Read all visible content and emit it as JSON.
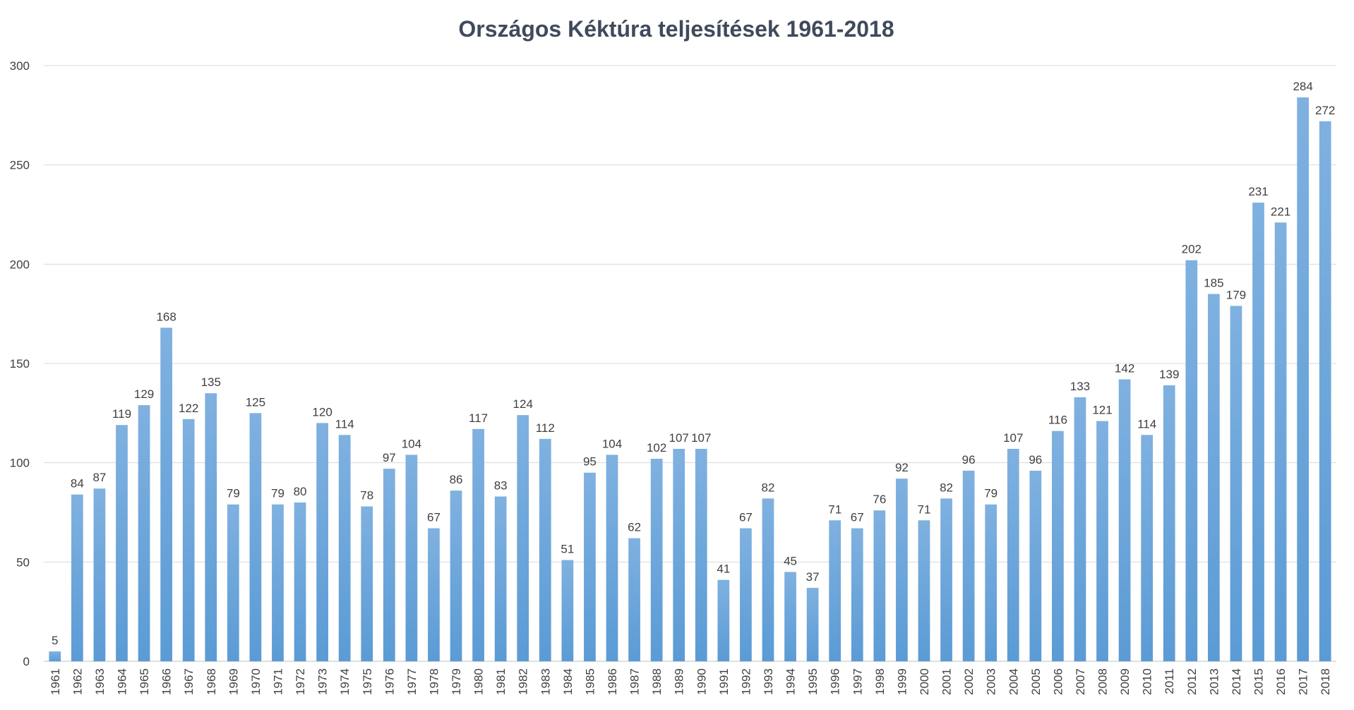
{
  "chart_data": {
    "type": "bar",
    "title": "Országos  Kéktúra teljesítések 1961-2018",
    "xlabel": "",
    "ylabel": "",
    "ylim": [
      0,
      300
    ],
    "yticks": [
      0,
      50,
      100,
      150,
      200,
      250,
      300
    ],
    "grid": true,
    "legend": "none",
    "bar_color": "#5b9bd5",
    "bar_color_top": "#7fb1e0",
    "categories": [
      "1961",
      "1962",
      "1963",
      "1964",
      "1965",
      "1966",
      "1967",
      "1968",
      "1969",
      "1970",
      "1971",
      "1972",
      "1973",
      "1974",
      "1975",
      "1976",
      "1977",
      "1978",
      "1979",
      "1980",
      "1981",
      "1982",
      "1983",
      "1984",
      "1985",
      "1986",
      "1987",
      "1988",
      "1989",
      "1990",
      "1991",
      "1992",
      "1993",
      "1994",
      "1995",
      "1996",
      "1997",
      "1998",
      "1999",
      "2000",
      "2001",
      "2002",
      "2003",
      "2004",
      "2005",
      "2006",
      "2007",
      "2008",
      "2009",
      "2010",
      "2011",
      "2012",
      "2013",
      "2014",
      "2015",
      "2016",
      "2017",
      "2018"
    ],
    "values": [
      5,
      84,
      87,
      119,
      129,
      168,
      122,
      135,
      79,
      125,
      79,
      80,
      120,
      114,
      78,
      97,
      104,
      67,
      86,
      117,
      83,
      124,
      112,
      51,
      95,
      104,
      62,
      102,
      107,
      107,
      41,
      67,
      82,
      45,
      37,
      71,
      67,
      76,
      92,
      71,
      82,
      96,
      79,
      107,
      96,
      116,
      133,
      121,
      142,
      114,
      139,
      202,
      185,
      179,
      231,
      221,
      284,
      272
    ]
  }
}
